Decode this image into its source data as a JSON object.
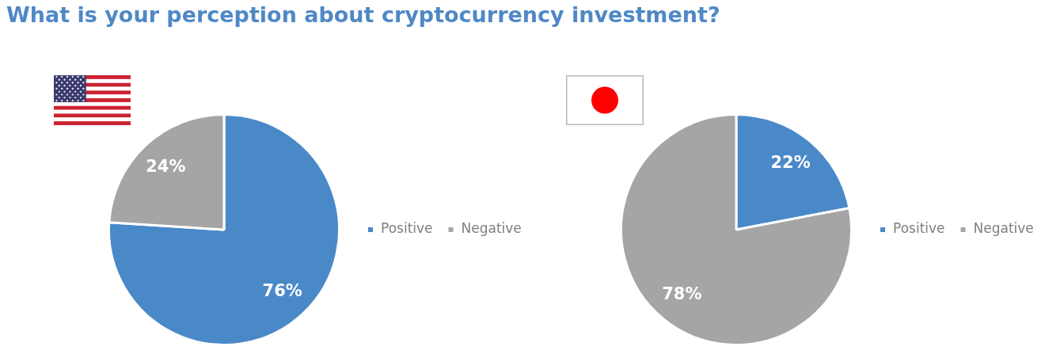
{
  "chart_data": [
    {
      "type": "pie",
      "title": "What is your perception about cryptocurrency investment?",
      "categories": [
        "Positive",
        "Negative"
      ],
      "values": [
        76,
        24
      ],
      "colors": [
        "#4a89c8",
        "#a5a5a5"
      ],
      "value_labels": [
        "76%",
        "24%"
      ],
      "legend": "right"
    },
    {
      "type": "pie",
      "categories": [
        "Positive",
        "Negative"
      ],
      "values": [
        22,
        78
      ],
      "colors": [
        "#4a89c8",
        "#a5a5a5"
      ],
      "value_labels": [
        "22%",
        "78%"
      ],
      "legend": "right"
    }
  ]
}
